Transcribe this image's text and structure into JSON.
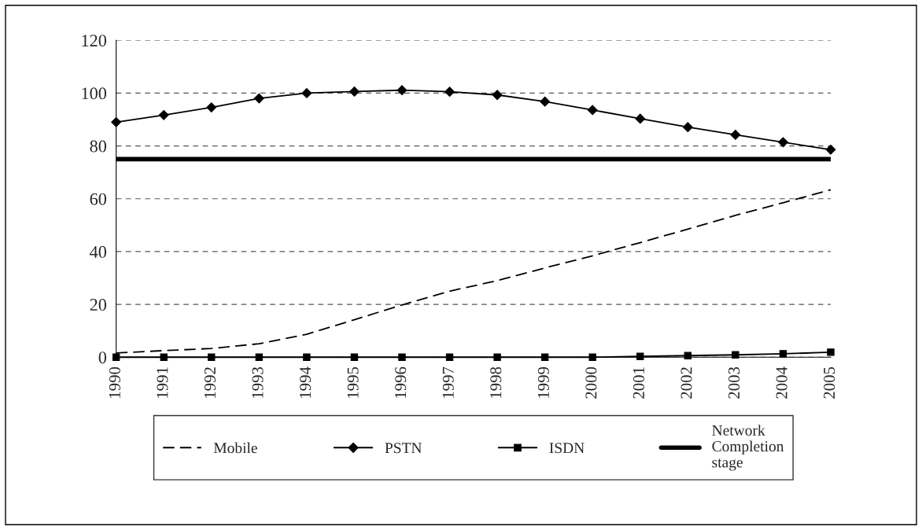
{
  "chart_data": {
    "type": "line",
    "categories": [
      "1990",
      "1991",
      "1992",
      "1993",
      "1994",
      "1995",
      "1996",
      "1997",
      "1998",
      "1999",
      "2000",
      "2001",
      "2002",
      "2003",
      "2004",
      "2005"
    ],
    "series": [
      {
        "name": "Mobile",
        "color": "#000000",
        "line_style": "dashed",
        "marker": "none",
        "values": [
          1.6,
          2.5,
          3.3,
          5.1,
          8.7,
          14.2,
          19.8,
          25,
          29,
          33.8,
          38.4,
          43.4,
          48.5,
          53.7,
          58.5,
          63.4
        ]
      },
      {
        "name": "PSTN",
        "color": "#000000",
        "line_style": "solid",
        "marker": "diamond",
        "values": [
          89,
          91.7,
          94.6,
          98,
          100,
          100.6,
          101.1,
          100.5,
          99.3,
          96.8,
          93.6,
          90.3,
          87.1,
          84.2,
          81.4,
          78.6
        ]
      },
      {
        "name": "ISDN",
        "color": "#000000",
        "line_style": "solid",
        "marker": "square",
        "values": [
          0,
          0,
          0,
          0,
          0,
          0,
          0,
          0,
          0,
          0,
          0,
          0.3,
          0.6,
          0.9,
          1.3,
          1.9
        ]
      }
    ],
    "ref_lines": [
      {
        "axis": "y",
        "value": 75,
        "label": "Network\nCompletion\nstage",
        "color": "#000000",
        "line_style": "solid"
      }
    ],
    "ylim": [
      0,
      120
    ],
    "yticks": [
      0,
      20,
      40,
      60,
      80,
      100,
      120
    ],
    "grid": "y",
    "legend": "bottom"
  }
}
